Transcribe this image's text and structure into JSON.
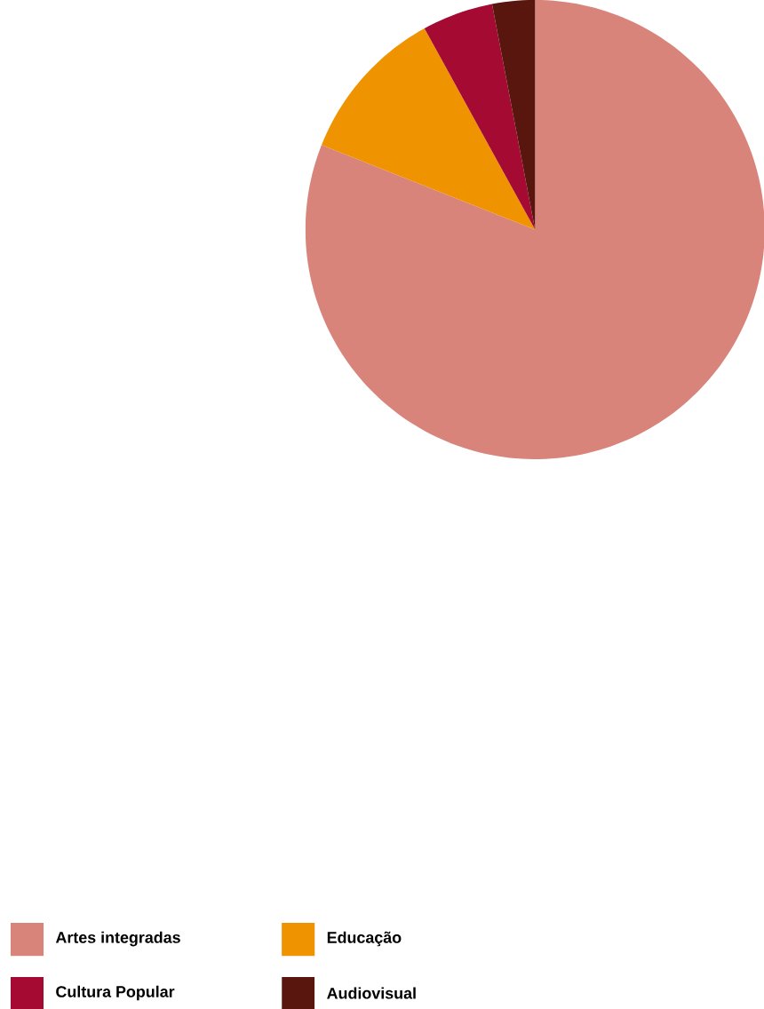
{
  "chart_data": {
    "type": "pie",
    "categories": [
      "Artes integradas",
      "Educação",
      "Cultura Popular",
      "Audiovisual"
    ],
    "values": [
      81,
      11,
      5,
      3
    ],
    "colors": [
      "#d8847a",
      "#f09300",
      "#a50a33",
      "#58160e"
    ],
    "legend": "bottom"
  }
}
